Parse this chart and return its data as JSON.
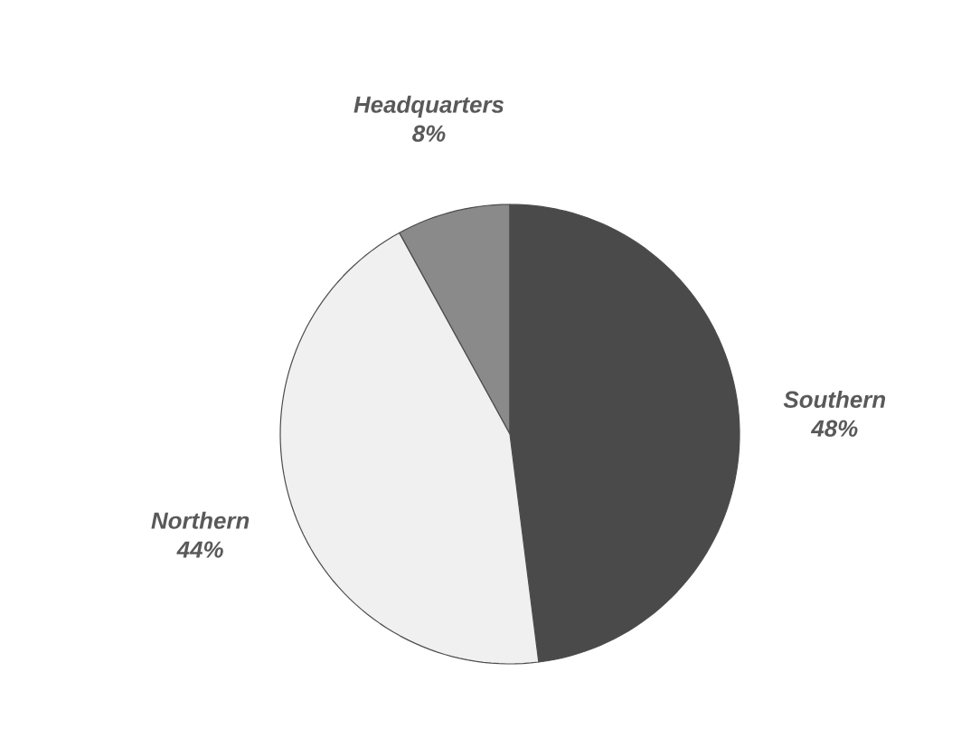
{
  "chart_data": {
    "type": "pie",
    "categories": [
      "Headquarters",
      "Southern",
      "Northern"
    ],
    "values": [
      8,
      48,
      44
    ],
    "value_labels": [
      "8%",
      "48%",
      "44%"
    ],
    "colors": [
      "#8a8a8a",
      "#4a4a4a",
      "#f0f0f0"
    ]
  }
}
